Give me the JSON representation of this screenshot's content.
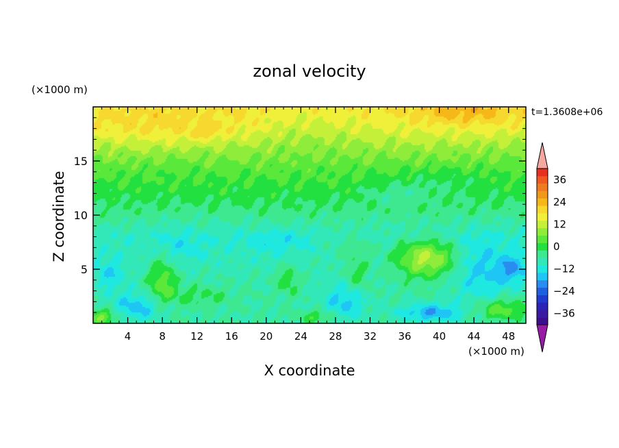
{
  "chart_data": {
    "type": "heatmap",
    "title": "zonal velocity",
    "xlabel": "X coordinate",
    "ylabel": "Z coordinate",
    "x_unit": "(×1000 m)",
    "y_unit": "(×1000 m)",
    "time_label": "t=1.3608e+06",
    "xlim": [
      0,
      50
    ],
    "ylim": [
      0,
      20
    ],
    "x_ticks": [
      4,
      8,
      12,
      16,
      20,
      24,
      28,
      32,
      36,
      40,
      44,
      48
    ],
    "y_ticks": [
      5,
      10,
      15
    ],
    "colorbar": {
      "min": -42,
      "max": 42,
      "step": 4,
      "tick_values": [
        36,
        24,
        12,
        0,
        -12,
        -24,
        -36
      ],
      "tick_labels": [
        "36",
        "24",
        "12",
        "0",
        "−12",
        "−24",
        "−36"
      ],
      "colors": [
        "#3d0f8f",
        "#3a1aa0",
        "#2a25b5",
        "#1f3ccf",
        "#1f62e0",
        "#2a8cf0",
        "#1fc6f5",
        "#1ee8e0",
        "#33e8b8",
        "#3ee890",
        "#22e040",
        "#5ae83a",
        "#90ec3a",
        "#c4f03a",
        "#f0f03a",
        "#f6d82e",
        "#f6b818",
        "#f0981a",
        "#f07a20",
        "#f05a20",
        "#e83020"
      ],
      "under_color": "#9a1aa8",
      "over_color": "#f4a8a0"
    },
    "field_description_values": {
      "background_profile": [
        {
          "z": 0,
          "u": -6
        },
        {
          "z": 3,
          "u": -6
        },
        {
          "z": 8,
          "u": -9
        },
        {
          "z": 10.5,
          "u": -3
        },
        {
          "z": 12,
          "u": 0
        },
        {
          "z": 14,
          "u": 3
        },
        {
          "z": 16,
          "u": 8
        },
        {
          "z": 18,
          "u": 15
        },
        {
          "z": 20,
          "u": 18
        }
      ],
      "anomalies": [
        {
          "x": 38.5,
          "z": 6.0,
          "a": 19,
          "rx": 3.5,
          "rz": 1.7
        },
        {
          "x": 45,
          "z": 4.5,
          "a": -8,
          "rx": 3.5,
          "rz": 3.2
        },
        {
          "x": 48.5,
          "z": 5.0,
          "a": -10,
          "rx": 1.5,
          "rz": 1.2
        },
        {
          "x": 39,
          "z": 1.0,
          "a": -12,
          "rx": 3.5,
          "rz": 0.8
        },
        {
          "x": 8,
          "z": 4.0,
          "a": 11,
          "rx": 1.6,
          "rz": 2.2
        },
        {
          "x": 5,
          "z": 1.5,
          "a": -10,
          "rx": 3,
          "rz": 1.3
        },
        {
          "x": 2,
          "z": 4.5,
          "a": -7,
          "rx": 1.8,
          "rz": 1.5
        },
        {
          "x": 22.5,
          "z": 4.0,
          "a": 8,
          "rx": 1.2,
          "rz": 1.2
        },
        {
          "x": 30.5,
          "z": 4.5,
          "a": 7,
          "rx": 1.4,
          "rz": 1.5
        },
        {
          "x": 29,
          "z": 2.0,
          "a": -9,
          "rx": 2.5,
          "rz": 1.8
        },
        {
          "x": 26,
          "z": 0.6,
          "a": 8,
          "rx": 2,
          "rz": 0.6
        },
        {
          "x": 47,
          "z": 1.3,
          "a": 12,
          "rx": 3,
          "rz": 1.0
        },
        {
          "x": 1,
          "z": 0.6,
          "a": 12,
          "rx": 2,
          "rz": 0.8
        },
        {
          "x": 12,
          "z": 2.5,
          "a": 5,
          "rx": 4,
          "rz": 1.0
        },
        {
          "x": 10,
          "z": 7.0,
          "a": -4,
          "rx": 3,
          "rz": 1.5
        },
        {
          "x": 21,
          "z": 7.5,
          "a": -4,
          "rx": 4,
          "rz": 1.3
        },
        {
          "x": 30,
          "z": 7.0,
          "a": 4,
          "rx": 3,
          "rz": 1.3
        },
        {
          "x": 35,
          "z": 12.0,
          "a": -4,
          "rx": 4,
          "rz": 1.0
        },
        {
          "x": 40,
          "z": 13.0,
          "a": -3,
          "rx": 6,
          "rz": 1.5
        },
        {
          "x": 43,
          "z": 19.5,
          "a": 7,
          "rx": 6,
          "rz": 1.2
        },
        {
          "x": 8,
          "z": 18.0,
          "a": 4,
          "rx": 10,
          "rz": 2.0
        },
        {
          "x": 13,
          "z": 17.5,
          "a": 4,
          "rx": 1.5,
          "rz": 0.6
        },
        {
          "x": 25,
          "z": 18.0,
          "a": -3,
          "rx": 6,
          "rz": 2.0
        }
      ]
    }
  }
}
